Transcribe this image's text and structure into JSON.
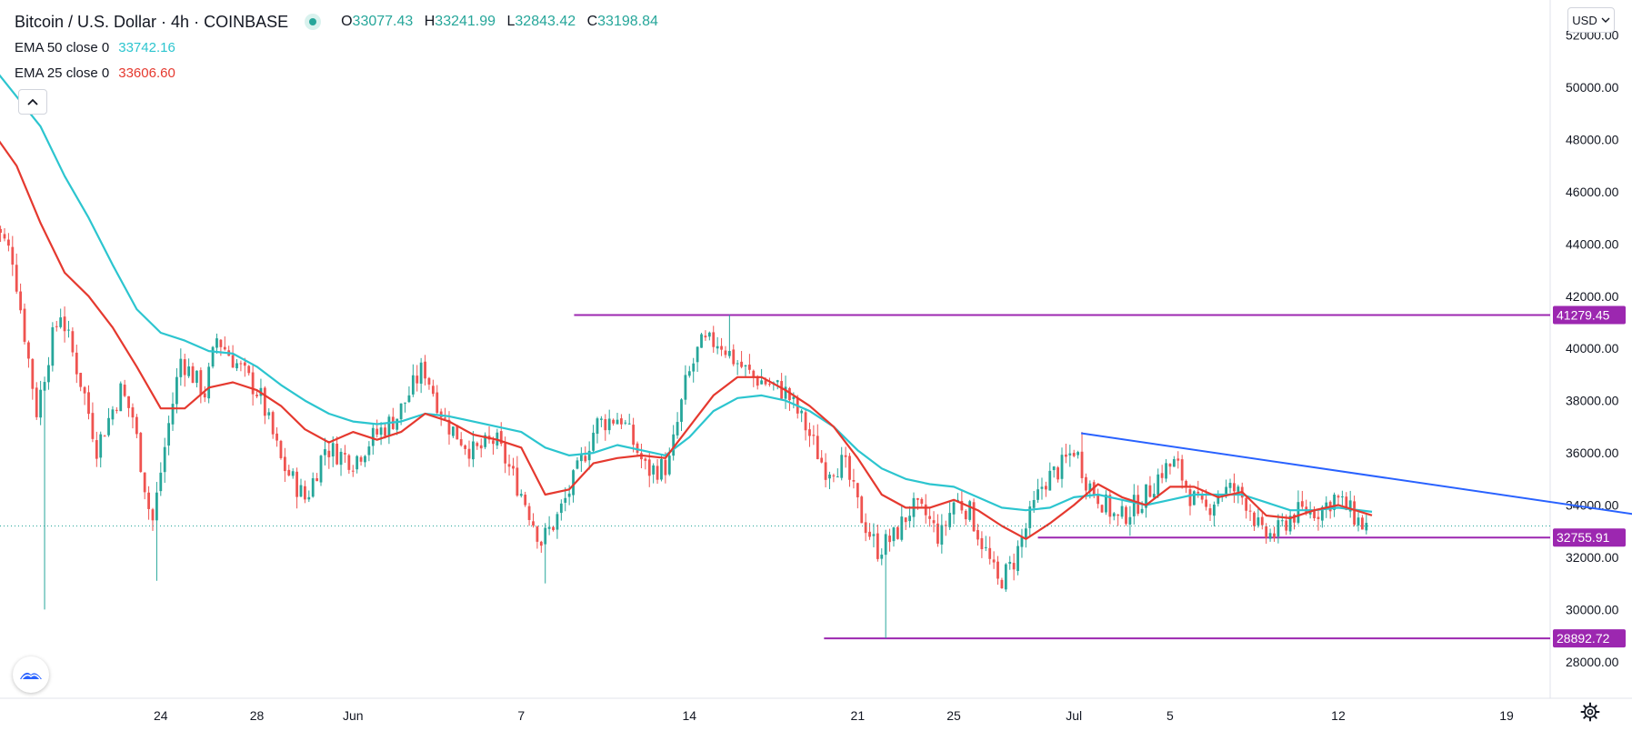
{
  "header": {
    "title": "Bitcoin / U.S. Dollar · 4h · COINBASE",
    "ohlc": [
      {
        "k": "O",
        "v": "33077.43"
      },
      {
        "k": "H",
        "v": "33241.99"
      },
      {
        "k": "L",
        "v": "32843.42"
      },
      {
        "k": "C",
        "v": "33198.84"
      }
    ]
  },
  "indicators": [
    {
      "label": "EMA 50 close 0",
      "value": "33742.16",
      "color": "#2cc5cf"
    },
    {
      "label": "EMA 25 close 0",
      "value": "33606.60",
      "color": "#e5392f"
    }
  ],
  "controls": {
    "currency": "USD",
    "collapse_icon": "chevron-up-icon",
    "logo_icon": "tradingview-logo-icon",
    "settings_icon": "gear-icon"
  },
  "colors": {
    "up": "#26a69a",
    "down": "#ef5350",
    "level_line": "#9c27b0",
    "trend_line": "#2962ff",
    "ema50": "#2cc5cf",
    "ema25": "#e5392f"
  },
  "chart_data": {
    "type": "candlestick",
    "symbol": "Bitcoin / U.S. Dollar",
    "timeframe": "4h",
    "exchange": "COINBASE",
    "ylim": [
      26000,
      53000
    ],
    "xlim": [
      0,
      73.5
    ],
    "y_ticks": [
      "52000.00",
      "50000.00",
      "48000.00",
      "46000.00",
      "44000.00",
      "42000.00",
      "40000.00",
      "38000.00",
      "36000.00",
      "34000.00",
      "32000.00",
      "30000.00",
      "28000.00"
    ],
    "x_ticks": [
      {
        "label": "24",
        "t": 7
      },
      {
        "label": "28",
        "t": 11
      },
      {
        "label": "Jun",
        "t": 15
      },
      {
        "label": "7",
        "t": 22
      },
      {
        "label": "14",
        "t": 29
      },
      {
        "label": "21",
        "t": 36
      },
      {
        "label": "25",
        "t": 40
      },
      {
        "label": "Jul",
        "t": 45
      },
      {
        "label": "5",
        "t": 49
      },
      {
        "label": "12",
        "t": 56
      },
      {
        "label": "19",
        "t": 63
      }
    ],
    "price_path": [
      {
        "t": 0,
        "p": 45200
      },
      {
        "t": 1,
        "p": 43500
      },
      {
        "t": 2,
        "p": 37600
      },
      {
        "t": 2.6,
        "p": 40200
      },
      {
        "t": 3,
        "p": 41400
      },
      {
        "t": 4,
        "p": 38200
      },
      {
        "t": 4.5,
        "p": 36200
      },
      {
        "t": 5.5,
        "p": 38400
      },
      {
        "t": 6,
        "p": 37400
      },
      {
        "t": 6.8,
        "p": 33200
      },
      {
        "t": 7.4,
        "p": 36600
      },
      {
        "t": 8,
        "p": 39600
      },
      {
        "t": 9,
        "p": 38300
      },
      {
        "t": 9.5,
        "p": 40400
      },
      {
        "t": 10.5,
        "p": 39200
      },
      {
        "t": 11.3,
        "p": 38200
      },
      {
        "t": 12.2,
        "p": 35600
      },
      {
        "t": 13.2,
        "p": 34200
      },
      {
        "t": 14,
        "p": 36200
      },
      {
        "t": 15.2,
        "p": 35700
      },
      {
        "t": 16,
        "p": 36600
      },
      {
        "t": 17,
        "p": 37400
      },
      {
        "t": 18.1,
        "p": 39300
      },
      {
        "t": 19,
        "p": 37200
      },
      {
        "t": 20.2,
        "p": 36000
      },
      {
        "t": 21.1,
        "p": 36500
      },
      {
        "t": 22.3,
        "p": 34200
      },
      {
        "t": 23,
        "p": 32600
      },
      {
        "t": 23.6,
        "p": 33400
      },
      {
        "t": 24.2,
        "p": 34600
      },
      {
        "t": 25.3,
        "p": 37100
      },
      {
        "t": 26.3,
        "p": 37400
      },
      {
        "t": 27.4,
        "p": 35300
      },
      {
        "t": 28.3,
        "p": 35500
      },
      {
        "t": 29,
        "p": 38600
      },
      {
        "t": 29.6,
        "p": 40100
      },
      {
        "t": 30.4,
        "p": 40300
      },
      {
        "t": 31,
        "p": 39600
      },
      {
        "t": 31.8,
        "p": 38900
      },
      {
        "t": 32.6,
        "p": 38600
      },
      {
        "t": 33.2,
        "p": 38300
      },
      {
        "t": 34,
        "p": 37000
      },
      {
        "t": 34.8,
        "p": 35400
      },
      {
        "t": 35.6,
        "p": 35600
      },
      {
        "t": 36.3,
        "p": 33600
      },
      {
        "t": 37,
        "p": 32300
      },
      {
        "t": 37.7,
        "p": 32800
      },
      {
        "t": 38.4,
        "p": 33900
      },
      {
        "t": 39,
        "p": 33600
      },
      {
        "t": 39.6,
        "p": 32700
      },
      {
        "t": 40.2,
        "p": 34200
      },
      {
        "t": 40.8,
        "p": 33800
      },
      {
        "t": 41.5,
        "p": 32200
      },
      {
        "t": 42,
        "p": 31000
      },
      {
        "t": 42.6,
        "p": 31700
      },
      {
        "t": 43.2,
        "p": 33200
      },
      {
        "t": 43.9,
        "p": 34900
      },
      {
        "t": 44.6,
        "p": 35400
      },
      {
        "t": 45.2,
        "p": 36200
      },
      {
        "t": 45.7,
        "p": 34900
      },
      {
        "t": 46.3,
        "p": 34200
      },
      {
        "t": 47,
        "p": 33400
      },
      {
        "t": 47.6,
        "p": 33900
      },
      {
        "t": 48.2,
        "p": 34400
      },
      {
        "t": 48.8,
        "p": 35300
      },
      {
        "t": 49.4,
        "p": 35600
      },
      {
        "t": 50,
        "p": 34400
      },
      {
        "t": 50.6,
        "p": 33700
      },
      {
        "t": 51.2,
        "p": 34500
      },
      {
        "t": 51.8,
        "p": 34600
      },
      {
        "t": 52.4,
        "p": 34100
      },
      {
        "t": 53,
        "p": 32800
      },
      {
        "t": 53.6,
        "p": 32900
      },
      {
        "t": 54.2,
        "p": 33600
      },
      {
        "t": 54.8,
        "p": 33800
      },
      {
        "t": 55.4,
        "p": 33800
      },
      {
        "t": 56,
        "p": 34300
      },
      {
        "t": 56.6,
        "p": 33800
      },
      {
        "t": 57.2,
        "p": 33200
      }
    ],
    "wick_extremes": [
      {
        "t": 2.2,
        "low": 30000
      },
      {
        "t": 6.8,
        "low": 31100
      },
      {
        "t": 23,
        "low": 31000
      },
      {
        "t": 37.2,
        "low": 28900
      },
      {
        "t": 30.6,
        "high": 41279.45
      },
      {
        "t": 45.3,
        "high": 36800
      }
    ],
    "ema50": [
      {
        "t": 0,
        "p": 50800
      },
      {
        "t": 2,
        "p": 48500
      },
      {
        "t": 3,
        "p": 46600
      },
      {
        "t": 4,
        "p": 45000
      },
      {
        "t": 5,
        "p": 43200
      },
      {
        "t": 6,
        "p": 41500
      },
      {
        "t": 7,
        "p": 40600
      },
      {
        "t": 8,
        "p": 40300
      },
      {
        "t": 9,
        "p": 39900
      },
      {
        "t": 10,
        "p": 39800
      },
      {
        "t": 11,
        "p": 39300
      },
      {
        "t": 12,
        "p": 38600
      },
      {
        "t": 13,
        "p": 38000
      },
      {
        "t": 14,
        "p": 37500
      },
      {
        "t": 15,
        "p": 37200
      },
      {
        "t": 16,
        "p": 37100
      },
      {
        "t": 17,
        "p": 37200
      },
      {
        "t": 18,
        "p": 37500
      },
      {
        "t": 19,
        "p": 37400
      },
      {
        "t": 20,
        "p": 37200
      },
      {
        "t": 21,
        "p": 37000
      },
      {
        "t": 22,
        "p": 36800
      },
      {
        "t": 23,
        "p": 36200
      },
      {
        "t": 24,
        "p": 35900
      },
      {
        "t": 25,
        "p": 36000
      },
      {
        "t": 26,
        "p": 36300
      },
      {
        "t": 27,
        "p": 36100
      },
      {
        "t": 28,
        "p": 35900
      },
      {
        "t": 29,
        "p": 36600
      },
      {
        "t": 30,
        "p": 37600
      },
      {
        "t": 31,
        "p": 38100
      },
      {
        "t": 32,
        "p": 38200
      },
      {
        "t": 33,
        "p": 38000
      },
      {
        "t": 34,
        "p": 37600
      },
      {
        "t": 35,
        "p": 37000
      },
      {
        "t": 36,
        "p": 36100
      },
      {
        "t": 37,
        "p": 35400
      },
      {
        "t": 38,
        "p": 35000
      },
      {
        "t": 39,
        "p": 34800
      },
      {
        "t": 40,
        "p": 34700
      },
      {
        "t": 41,
        "p": 34300
      },
      {
        "t": 42,
        "p": 33900
      },
      {
        "t": 43,
        "p": 33800
      },
      {
        "t": 44,
        "p": 33900
      },
      {
        "t": 45,
        "p": 34300
      },
      {
        "t": 46,
        "p": 34400
      },
      {
        "t": 47,
        "p": 34200
      },
      {
        "t": 48,
        "p": 34000
      },
      {
        "t": 49,
        "p": 34200
      },
      {
        "t": 50,
        "p": 34400
      },
      {
        "t": 51,
        "p": 34400
      },
      {
        "t": 52,
        "p": 34400
      },
      {
        "t": 53,
        "p": 34100
      },
      {
        "t": 54,
        "p": 33800
      },
      {
        "t": 55,
        "p": 33800
      },
      {
        "t": 56,
        "p": 33900
      },
      {
        "t": 57.4,
        "p": 33742.16
      }
    ],
    "ema25": [
      {
        "t": 0,
        "p": 48300
      },
      {
        "t": 1,
        "p": 47000
      },
      {
        "t": 2,
        "p": 44800
      },
      {
        "t": 3,
        "p": 42900
      },
      {
        "t": 4,
        "p": 42000
      },
      {
        "t": 5,
        "p": 40800
      },
      {
        "t": 6,
        "p": 39300
      },
      {
        "t": 7,
        "p": 37700
      },
      {
        "t": 8,
        "p": 37700
      },
      {
        "t": 9,
        "p": 38500
      },
      {
        "t": 10,
        "p": 38700
      },
      {
        "t": 11,
        "p": 38400
      },
      {
        "t": 12,
        "p": 37800
      },
      {
        "t": 13,
        "p": 36900
      },
      {
        "t": 14,
        "p": 36400
      },
      {
        "t": 15,
        "p": 36800
      },
      {
        "t": 16,
        "p": 36500
      },
      {
        "t": 17,
        "p": 36800
      },
      {
        "t": 18,
        "p": 37500
      },
      {
        "t": 19,
        "p": 37200
      },
      {
        "t": 20,
        "p": 36700
      },
      {
        "t": 21,
        "p": 36500
      },
      {
        "t": 22,
        "p": 36200
      },
      {
        "t": 23,
        "p": 34400
      },
      {
        "t": 24,
        "p": 34600
      },
      {
        "t": 25,
        "p": 35600
      },
      {
        "t": 26,
        "p": 35800
      },
      {
        "t": 27,
        "p": 35900
      },
      {
        "t": 28,
        "p": 35800
      },
      {
        "t": 29,
        "p": 37000
      },
      {
        "t": 30,
        "p": 38200
      },
      {
        "t": 31,
        "p": 38900
      },
      {
        "t": 32,
        "p": 38900
      },
      {
        "t": 33,
        "p": 38400
      },
      {
        "t": 34,
        "p": 37800
      },
      {
        "t": 35,
        "p": 37000
      },
      {
        "t": 36,
        "p": 35800
      },
      {
        "t": 37,
        "p": 34400
      },
      {
        "t": 38,
        "p": 33900
      },
      {
        "t": 39,
        "p": 33900
      },
      {
        "t": 40,
        "p": 34200
      },
      {
        "t": 41,
        "p": 33800
      },
      {
        "t": 42,
        "p": 33200
      },
      {
        "t": 43,
        "p": 32700
      },
      {
        "t": 44,
        "p": 33300
      },
      {
        "t": 45,
        "p": 34000
      },
      {
        "t": 46,
        "p": 34800
      },
      {
        "t": 47,
        "p": 34300
      },
      {
        "t": 48,
        "p": 34000
      },
      {
        "t": 49,
        "p": 34700
      },
      {
        "t": 50,
        "p": 34700
      },
      {
        "t": 51,
        "p": 34300
      },
      {
        "t": 52,
        "p": 34500
      },
      {
        "t": 53,
        "p": 33600
      },
      {
        "t": 54,
        "p": 33500
      },
      {
        "t": 55,
        "p": 33800
      },
      {
        "t": 56,
        "p": 34000
      },
      {
        "t": 57.4,
        "p": 33606.6
      }
    ],
    "horizontal_levels": [
      {
        "label": "41279.45",
        "price": 41279.45,
        "t_start": 24.2
      },
      {
        "label": "32755.91",
        "price": 32755.91,
        "t_start": 43.5
      },
      {
        "label": "28892.72",
        "price": 28892.72,
        "t_start": 34.6
      }
    ],
    "trend_line": {
      "t_start": 45.3,
      "p_start": 36750,
      "t_end": 73.5,
      "p_end": 32950
    },
    "last_price": 33198.84
  }
}
